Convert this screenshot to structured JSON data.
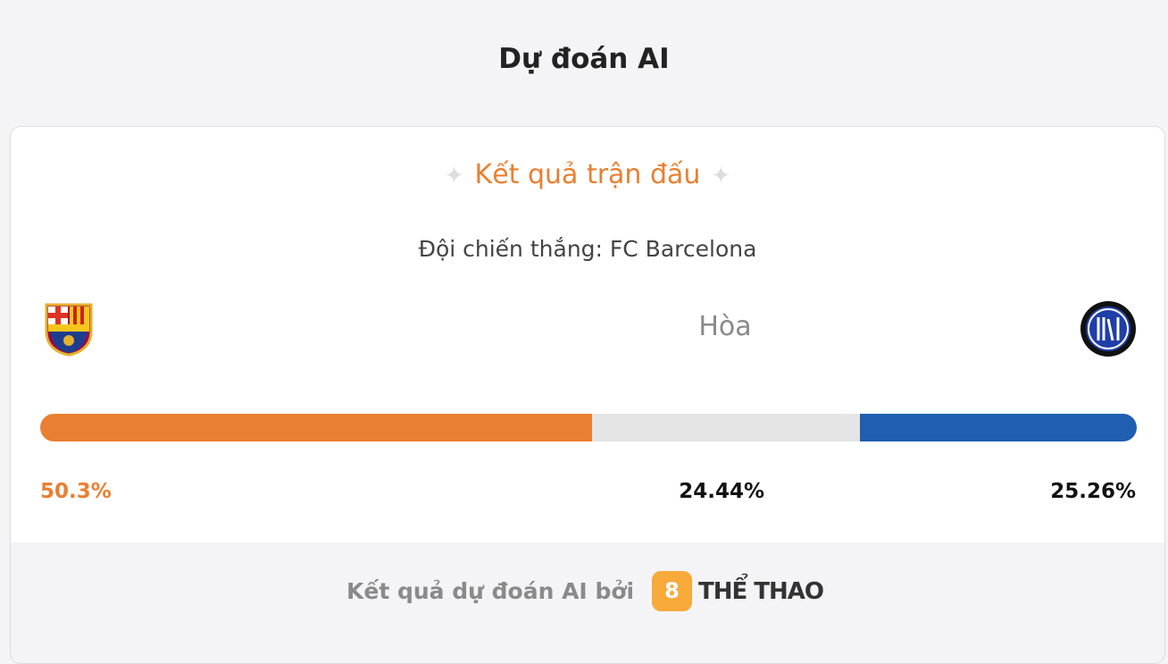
{
  "header": {
    "title": "Dự đoán AI"
  },
  "card": {
    "heading": "Kết quả trận đấu",
    "winner": "Đội chiến thắng: FC Barcelona",
    "draw_label": "Hòa",
    "prediction": {
      "segments": [
        {
          "value": 50.3,
          "label": "50.3%",
          "color": "#e97f31"
        },
        {
          "value": 24.44,
          "label": "24.44%",
          "color": "#e5e5e5"
        },
        {
          "value": 25.26,
          "label": "25.26%",
          "color": "#1f5eb0"
        }
      ]
    }
  },
  "footer": {
    "text": "Kết quả dự đoán AI bởi",
    "brand_badge": "8",
    "brand": "THỂ THAO"
  }
}
